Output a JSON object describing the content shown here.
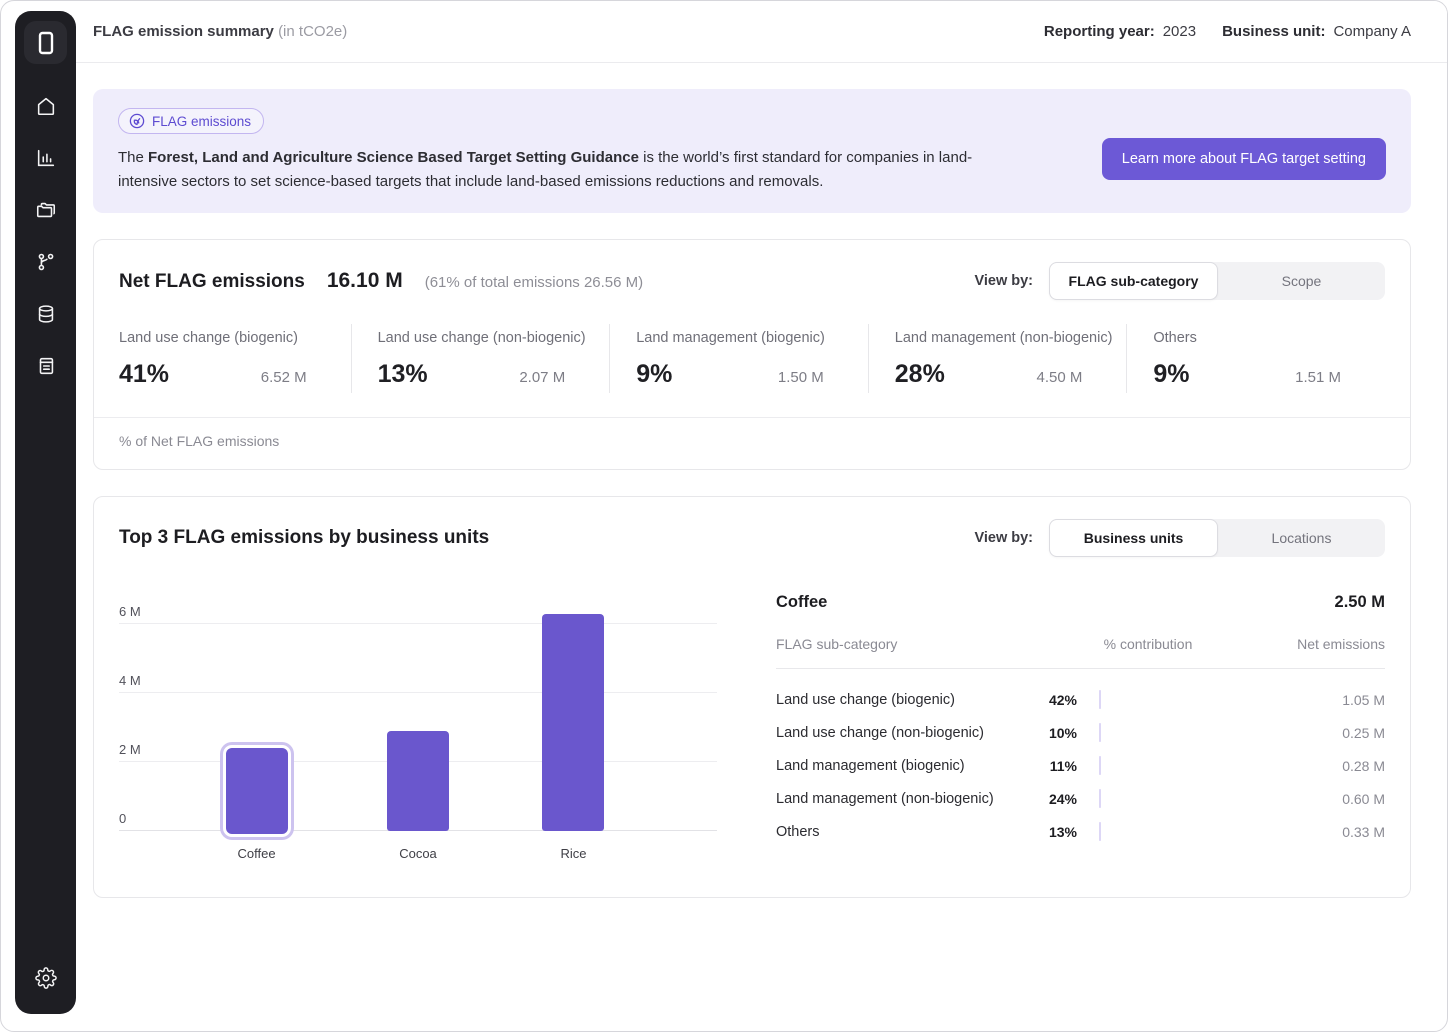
{
  "header": {
    "title": "FLAG emission summary",
    "title_suffix": "(in tCO2e)",
    "reporting_year_label": "Reporting year:",
    "reporting_year": "2023",
    "business_unit_label": "Business unit:",
    "business_unit": "Company A"
  },
  "sidebar": {
    "items": [
      "home",
      "charts",
      "folders",
      "hierarchy",
      "database",
      "notebook"
    ],
    "settings": "settings"
  },
  "banner": {
    "badge": "FLAG emissions",
    "text_prefix": "The ",
    "text_bold": "Forest, Land and Agriculture Science Based Target Setting Guidance",
    "text_rest": " is the world’s first standard for companies in land-intensive sectors to set science-based targets that include land-based emissions reductions and removals.",
    "button": "Learn more about FLAG target setting"
  },
  "net_card": {
    "title": "Net FLAG emissions",
    "total": "16.10 M",
    "total_note": "(61% of total emissions 26.56 M)",
    "view_by_label": "View by:",
    "toggle_active": "FLAG sub-category",
    "toggle_inactive": "Scope",
    "stats": [
      {
        "label": "Land use change (biogenic)",
        "pct": "41%",
        "value": "6.52 M"
      },
      {
        "label": "Land use change (non-biogenic)",
        "pct": "13%",
        "value": "2.07 M"
      },
      {
        "label": "Land management (biogenic)",
        "pct": "9%",
        "value": "1.50 M"
      },
      {
        "label": "Land management (non-biogenic)",
        "pct": "28%",
        "value": "4.50 M"
      },
      {
        "label": "Others",
        "pct": "9%",
        "value": "1.51 M"
      }
    ],
    "footnote": "% of Net FLAG emissions"
  },
  "top_card": {
    "title": "Top 3 FLAG emissions by business units",
    "view_by_label": "View by:",
    "toggle_active": "Business units",
    "toggle_inactive": "Locations",
    "detail": {
      "name": "Coffee",
      "total": "2.50 M",
      "col_category": "FLAG sub-category",
      "col_contribution": "% contribution",
      "col_net": "Net emissions",
      "rows": [
        {
          "label": "Land use change (biogenic)",
          "pct": "42%",
          "pct_num": 42,
          "value": "1.05 M"
        },
        {
          "label": "Land use change (non-biogenic)",
          "pct": "10%",
          "pct_num": 10,
          "value": "0.25 M"
        },
        {
          "label": "Land management (biogenic)",
          "pct": "11%",
          "pct_num": 11,
          "value": "0.28 M"
        },
        {
          "label": "Land management (non-biogenic)",
          "pct": "24%",
          "pct_num": 24,
          "value": "0.60 M"
        },
        {
          "label": "Others",
          "pct": "13%",
          "pct_num": 13,
          "value": "0.33 M"
        }
      ]
    }
  },
  "chart_data": {
    "type": "bar",
    "title": "Top 3 FLAG emissions by business units",
    "unit": "M tCO2e",
    "categories": [
      "Coffee",
      "Cocoa",
      "Rice"
    ],
    "values": [
      2.5,
      2.9,
      6.3
    ],
    "selected": "Coffee",
    "bar_centers_pct": [
      23,
      50,
      76
    ],
    "yticks": [
      {
        "value": 0,
        "label": "0"
      },
      {
        "value": 2,
        "label": "2 M"
      },
      {
        "value": 4,
        "label": "4 M"
      },
      {
        "value": 6,
        "label": "6 M"
      }
    ],
    "ylim": [
      0,
      6.9
    ],
    "grid": true,
    "legend": false
  },
  "colors": {
    "accent": "#6a57cd",
    "banner_bg": "#efedfb",
    "sidebar_bg": "#1e1e23",
    "track_bg": "#edebfb"
  }
}
